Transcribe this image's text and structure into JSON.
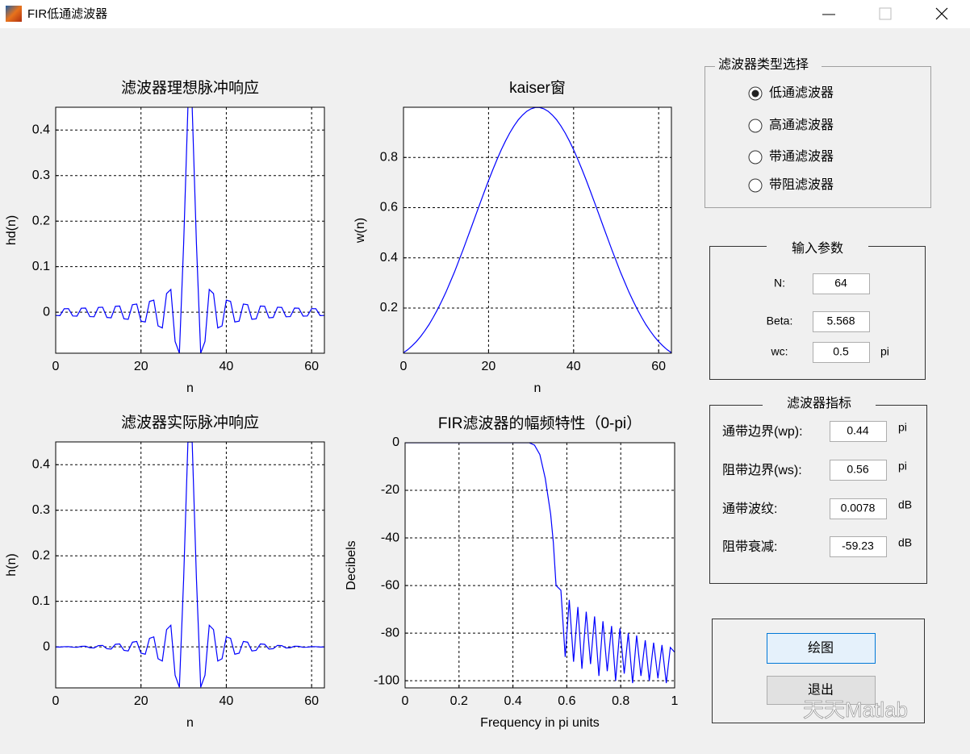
{
  "window": {
    "title": "FIR低通滤波器"
  },
  "chart_data": [
    {
      "type": "line",
      "title": "滤波器理想脉冲响应",
      "xlabel": "n",
      "ylabel": "hd(n)",
      "color": "#0000ff",
      "grid": true,
      "xlim": [
        0,
        63
      ],
      "xticks": [
        0,
        20,
        40,
        60
      ],
      "ylim": [
        -0.09,
        0.45
      ],
      "yticks": [
        0,
        0.1,
        0.2,
        0.3,
        0.4
      ],
      "x": [
        0,
        1,
        2,
        3,
        4,
        5,
        6,
        7,
        8,
        9,
        10,
        11,
        12,
        13,
        14,
        15,
        16,
        17,
        18,
        19,
        20,
        21,
        22,
        23,
        24,
        25,
        26,
        27,
        28,
        29,
        30,
        31,
        32,
        33,
        34,
        35,
        36,
        37,
        38,
        39,
        40,
        41,
        42,
        43,
        44,
        45,
        46,
        47,
        48,
        49,
        50,
        51,
        52,
        53,
        54,
        55,
        56,
        57,
        58,
        59,
        60,
        61,
        62,
        63
      ],
      "values": [
        -0.0071,
        -0.0074,
        0.0076,
        0.0079,
        -0.0082,
        -0.0085,
        0.0088,
        0.0092,
        -0.0096,
        -0.01,
        0.0105,
        0.011,
        -0.0115,
        -0.0122,
        0.0129,
        0.0136,
        -0.0145,
        -0.0155,
        0.0167,
        0.018,
        -0.0196,
        -0.0214,
        0.0237,
        0.0265,
        -0.03,
        -0.0346,
        0.0409,
        0.05,
        -0.0643,
        -0.09,
        0.1501,
        0.4502,
        0.4502,
        0.1501,
        -0.09,
        -0.0643,
        0.05,
        0.0409,
        -0.0346,
        -0.03,
        0.0265,
        0.0237,
        -0.0214,
        -0.0196,
        0.018,
        0.0167,
        -0.0155,
        -0.0145,
        0.0136,
        0.0129,
        -0.0122,
        -0.0115,
        0.011,
        0.0105,
        -0.01,
        -0.0096,
        0.0092,
        0.0088,
        -0.0085,
        -0.0082,
        0.0079,
        0.0076,
        -0.0074,
        -0.0071
      ]
    },
    {
      "type": "line",
      "title": "kaiser窗",
      "xlabel": "n",
      "ylabel": "w(n)",
      "color": "#0000ff",
      "grid": true,
      "xlim": [
        0,
        63
      ],
      "xticks": [
        0,
        20,
        40,
        60
      ],
      "ylim": [
        0.02,
        1
      ],
      "yticks": [
        0.2,
        0.4,
        0.6,
        0.8
      ],
      "x": [
        0,
        1,
        2,
        3,
        4,
        5,
        6,
        7,
        8,
        9,
        10,
        11,
        12,
        13,
        14,
        15,
        16,
        17,
        18,
        19,
        20,
        21,
        22,
        23,
        24,
        25,
        26,
        27,
        28,
        29,
        30,
        31,
        32,
        33,
        34,
        35,
        36,
        37,
        38,
        39,
        40,
        41,
        42,
        43,
        44,
        45,
        46,
        47,
        48,
        49,
        50,
        51,
        52,
        53,
        54,
        55,
        56,
        57,
        58,
        59,
        60,
        61,
        62,
        63
      ],
      "values": [
        0.022,
        0.034,
        0.049,
        0.066,
        0.086,
        0.109,
        0.134,
        0.163,
        0.194,
        0.228,
        0.264,
        0.304,
        0.344,
        0.388,
        0.432,
        0.478,
        0.524,
        0.571,
        0.617,
        0.663,
        0.708,
        0.751,
        0.792,
        0.831,
        0.866,
        0.898,
        0.926,
        0.95,
        0.969,
        0.984,
        0.994,
        0.999,
        0.999,
        0.994,
        0.984,
        0.969,
        0.95,
        0.926,
        0.898,
        0.866,
        0.831,
        0.792,
        0.751,
        0.708,
        0.663,
        0.617,
        0.571,
        0.524,
        0.478,
        0.432,
        0.388,
        0.344,
        0.304,
        0.264,
        0.228,
        0.194,
        0.163,
        0.134,
        0.109,
        0.086,
        0.066,
        0.049,
        0.034,
        0.022
      ]
    },
    {
      "type": "line",
      "title": "滤波器实际脉冲响应",
      "xlabel": "n",
      "ylabel": "h(n)",
      "color": "#0000ff",
      "grid": true,
      "xlim": [
        0,
        63
      ],
      "xticks": [
        0,
        20,
        40,
        60
      ],
      "ylim": [
        -0.09,
        0.45
      ],
      "yticks": [
        0,
        0.1,
        0.2,
        0.3,
        0.4
      ],
      "x": [
        0,
        1,
        2,
        3,
        4,
        5,
        6,
        7,
        8,
        9,
        10,
        11,
        12,
        13,
        14,
        15,
        16,
        17,
        18,
        19,
        20,
        21,
        22,
        23,
        24,
        25,
        26,
        27,
        28,
        29,
        30,
        31,
        32,
        33,
        34,
        35,
        36,
        37,
        38,
        39,
        40,
        41,
        42,
        43,
        44,
        45,
        46,
        47,
        48,
        49,
        50,
        51,
        52,
        53,
        54,
        55,
        56,
        57,
        58,
        59,
        60,
        61,
        62,
        63
      ],
      "values": [
        -0.0002,
        -0.0003,
        0.0004,
        0.0005,
        -0.0007,
        -0.0009,
        0.0012,
        0.0015,
        -0.0019,
        -0.0023,
        0.0028,
        0.0033,
        -0.004,
        -0.0047,
        0.0056,
        0.0065,
        -0.0076,
        -0.0089,
        0.0103,
        0.0119,
        -0.0139,
        -0.0161,
        0.0188,
        0.022,
        -0.026,
        -0.0311,
        0.0379,
        0.0475,
        -0.0623,
        -0.0886,
        0.1492,
        0.4498,
        0.4498,
        0.1492,
        -0.0886,
        -0.0623,
        0.0475,
        0.0379,
        -0.0311,
        -0.026,
        0.022,
        0.0188,
        -0.0161,
        -0.0139,
        0.0119,
        0.0103,
        -0.0089,
        -0.0076,
        0.0065,
        0.0056,
        -0.0047,
        -0.004,
        0.0033,
        0.0028,
        -0.0023,
        -0.0019,
        0.0015,
        0.0012,
        -0.0009,
        -0.0007,
        0.0005,
        0.0004,
        -0.0003,
        -0.0002
      ]
    },
    {
      "type": "line",
      "title": "FIR滤波器的幅频特性（0-pi）",
      "xlabel": "Frequency in pi units",
      "ylabel": "Decibels",
      "color": "#0000ff",
      "grid": true,
      "xlim": [
        0,
        1
      ],
      "xticks": [
        0,
        0.2,
        0.4,
        0.6,
        0.8,
        1
      ],
      "ylim": [
        -103,
        0
      ],
      "yticks": [
        0,
        -20,
        -40,
        -60,
        -80,
        -100
      ],
      "x": [
        0,
        0.1,
        0.2,
        0.3,
        0.4,
        0.46,
        0.48,
        0.5,
        0.52,
        0.54,
        0.55,
        0.56,
        0.578,
        0.594,
        0.609,
        0.625,
        0.641,
        0.656,
        0.672,
        0.688,
        0.703,
        0.719,
        0.734,
        0.75,
        0.766,
        0.781,
        0.797,
        0.813,
        0.828,
        0.844,
        0.859,
        0.875,
        0.891,
        0.906,
        0.922,
        0.938,
        0.953,
        0.969,
        0.984,
        1
      ],
      "values": [
        0,
        0,
        0,
        0,
        0,
        0,
        -1,
        -5,
        -15,
        -30,
        -42,
        -60,
        -62,
        -90,
        -66,
        -92,
        -69,
        -95,
        -71,
        -93,
        -73,
        -98,
        -75,
        -96,
        -77,
        -100,
        -78,
        -97,
        -80,
        -101,
        -81,
        -98,
        -83,
        -100,
        -84,
        -99,
        -85,
        -101,
        -86,
        -88
      ]
    }
  ],
  "filter_type": {
    "title": "滤波器类型选择",
    "options": [
      "低通滤波器",
      "高通滤波器",
      "带通滤波器",
      "带阻滤波器"
    ],
    "selected": 0
  },
  "input_params": {
    "title": "输入参数",
    "fields": [
      {
        "label": "N:",
        "value": "64"
      },
      {
        "label": "Beta:",
        "value": "5.568"
      },
      {
        "label": "wc:",
        "value": "0.5",
        "unit": "pi"
      }
    ]
  },
  "filter_specs": {
    "title": "滤波器指标",
    "fields": [
      {
        "label": "通带边界(wp):",
        "value": "0.44",
        "unit": "pi"
      },
      {
        "label": "阻带边界(ws):",
        "value": "0.56",
        "unit": "pi"
      },
      {
        "label": "通带波纹:",
        "value": "0.0078",
        "unit": "dB"
      },
      {
        "label": "阻带衰减:",
        "value": "-59.23",
        "unit": "dB"
      }
    ]
  },
  "buttons": [
    "绘图",
    "退出"
  ],
  "watermark": "天天Matlab"
}
